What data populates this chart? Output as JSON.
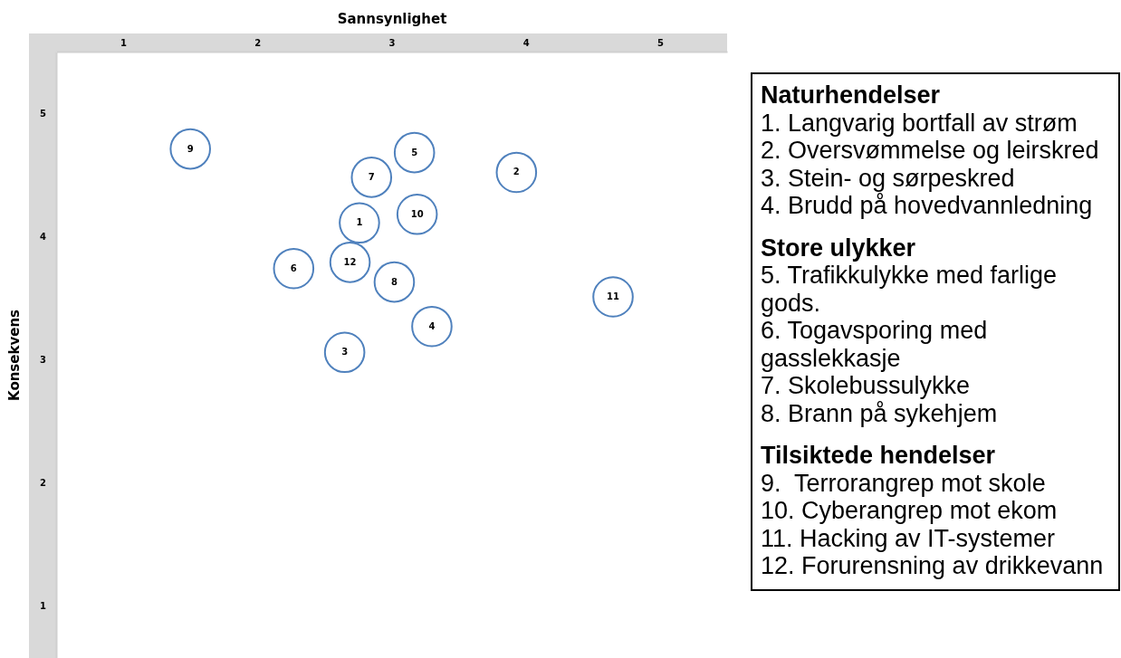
{
  "chart_data": {
    "type": "scatter",
    "xlabel": "Sannsynlighet",
    "ylabel": "Konsekvens",
    "series": [
      {
        "name": "1",
        "color": "#4f81bd",
        "x": [
          2.76
        ],
        "values": [
          4.11
        ]
      },
      {
        "name": "2",
        "color": "#4f81bd",
        "x": [
          3.93
        ],
        "values": [
          4.52
        ]
      },
      {
        "name": "3",
        "color": "#4f81bd",
        "x": [
          2.65
        ],
        "values": [
          3.06
        ]
      },
      {
        "name": "4",
        "color": "#4f81bd",
        "x": [
          3.3
        ],
        "values": [
          3.27
        ]
      },
      {
        "name": "5",
        "color": "#4f81bd",
        "x": [
          3.17
        ],
        "values": [
          4.68
        ]
      },
      {
        "name": "6",
        "color": "#4f81bd",
        "x": [
          2.27
        ],
        "values": [
          3.74
        ]
      },
      {
        "name": "7",
        "color": "#4f81bd",
        "x": [
          2.85
        ],
        "values": [
          4.48
        ]
      },
      {
        "name": "8",
        "color": "#4f81bd",
        "x": [
          3.02
        ],
        "values": [
          3.63
        ]
      },
      {
        "name": "9",
        "color": "#4f81bd",
        "x": [
          1.5
        ],
        "values": [
          4.71
        ]
      },
      {
        "name": "10",
        "color": "#4f81bd",
        "x": [
          3.19
        ],
        "values": [
          4.18
        ]
      },
      {
        "name": "11",
        "color": "#4f81bd",
        "x": [
          4.65
        ],
        "values": [
          3.51
        ]
      },
      {
        "name": "12",
        "color": "#4f81bd",
        "x": [
          2.69
        ],
        "values": [
          3.79
        ]
      }
    ],
    "marker": "circle",
    "grid": false,
    "xlim": [
      0.5,
      5.5
    ],
    "ylim": [
      0.58,
      5.5
    ],
    "xticks": [
      1,
      2,
      3,
      4,
      5
    ],
    "yticks": [
      1,
      2,
      3,
      4,
      5
    ],
    "annotations": [
      "Naturhendelser",
      "1. Langvarig bortfall av strøm",
      "2. Oversvømmelse og leirskred",
      "3. Stein- og sørpeskred",
      "4. Brudd på hovedvannledning",
      "Store ulykker",
      "5. Trafikkulykke med farlige gods.",
      "6. Togavsporing med gasslekkasje",
      "7. Skolebussulykke",
      "8. Brann på sykehjem",
      "Tilsiktede hendelser",
      "9.  Terrorangrep mot skole",
      "10. Cyberangrep mot ekom",
      "11. Hacking av IT-systemer",
      "12. Forurensning av drikkevann"
    ]
  }
}
